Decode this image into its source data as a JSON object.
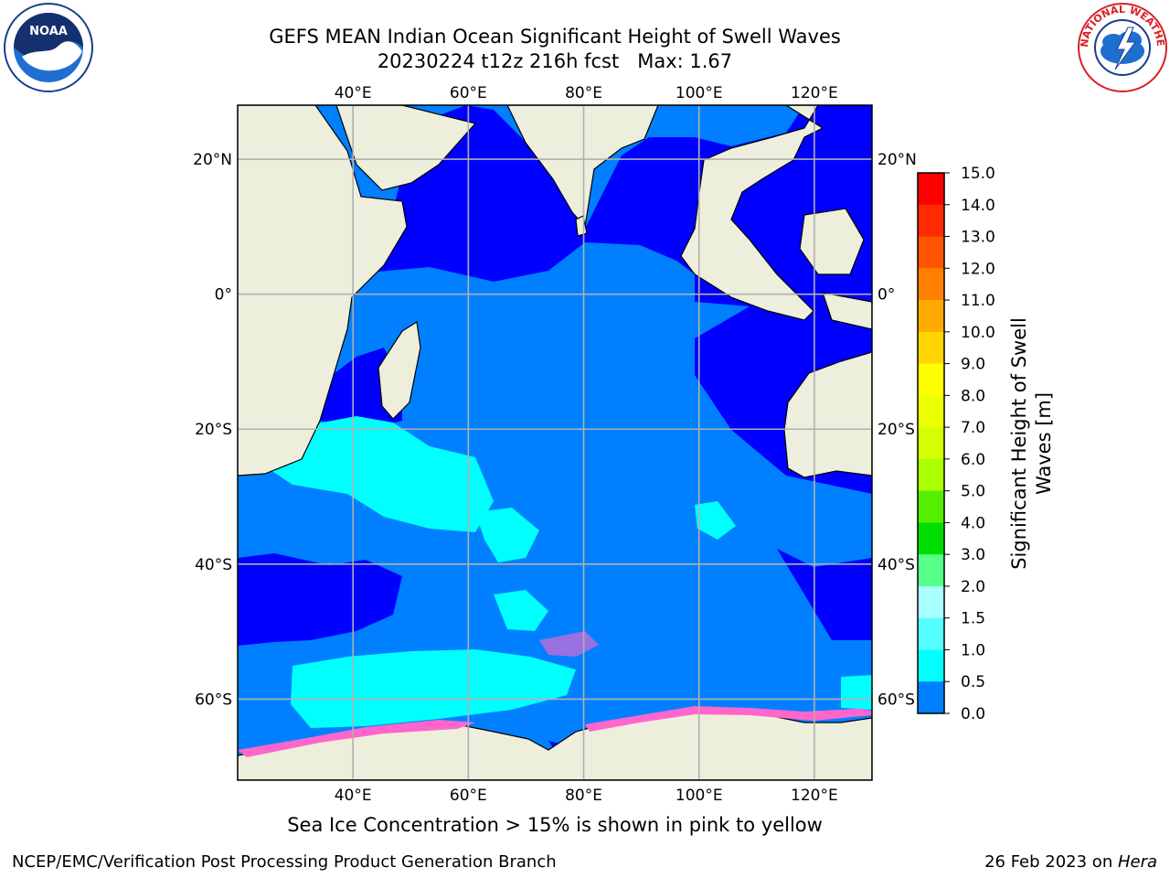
{
  "title": {
    "line1": "GEFS MEAN Indian Ocean Significant Height of Swell Waves",
    "line2": "20230224 t12z 216h fcst   Max: 1.67"
  },
  "map": {
    "lon_range": [
      20,
      130
    ],
    "lat_range": [
      -72,
      28
    ],
    "lon_ticks": [
      "40°E",
      "60°E",
      "80°E",
      "100°E",
      "120°E"
    ],
    "lat_ticks": [
      "20°N",
      "0°",
      "20°S",
      "40°S",
      "60°S"
    ],
    "grid": true,
    "colors": {
      "land": "#eeeedd",
      "ocean_low": "#0000ff",
      "ocean_mid": "#0080ff",
      "ocean_high": "#00ffff",
      "ice": "#ff66cc"
    }
  },
  "colorbar": {
    "label_line1": "Significant Height of Swell",
    "label_line2": "Waves [m]",
    "ticks": [
      "15.0",
      "14.0",
      "13.0",
      "12.0",
      "11.0",
      "10.0",
      "9.0",
      "8.0",
      "7.0",
      "6.0",
      "5.0",
      "4.0",
      "3.0",
      "2.0",
      "1.5",
      "1.0",
      "0.5",
      "0.0"
    ],
    "colors": [
      "#ff0000",
      "#ff2a00",
      "#ff5500",
      "#ff8000",
      "#ffaa00",
      "#ffd400",
      "#ffff00",
      "#eaff00",
      "#d4ff00",
      "#aaff00",
      "#55ee00",
      "#00dd00",
      "#55ff88",
      "#aaffff",
      "#55ffff",
      "#00ffff",
      "#0080ff",
      "#0000ff"
    ]
  },
  "caption": "Sea Ice Concentration > 15% is shown in pink to yellow",
  "footer": {
    "left": "NCEP/EMC/Verification Post Processing Product Generation Branch",
    "right_date": "26 Feb 2023 on ",
    "right_host": "Hera"
  },
  "logos": {
    "noaa": "NOAA",
    "nws": "NATIONAL WEATHER SERVICE"
  }
}
